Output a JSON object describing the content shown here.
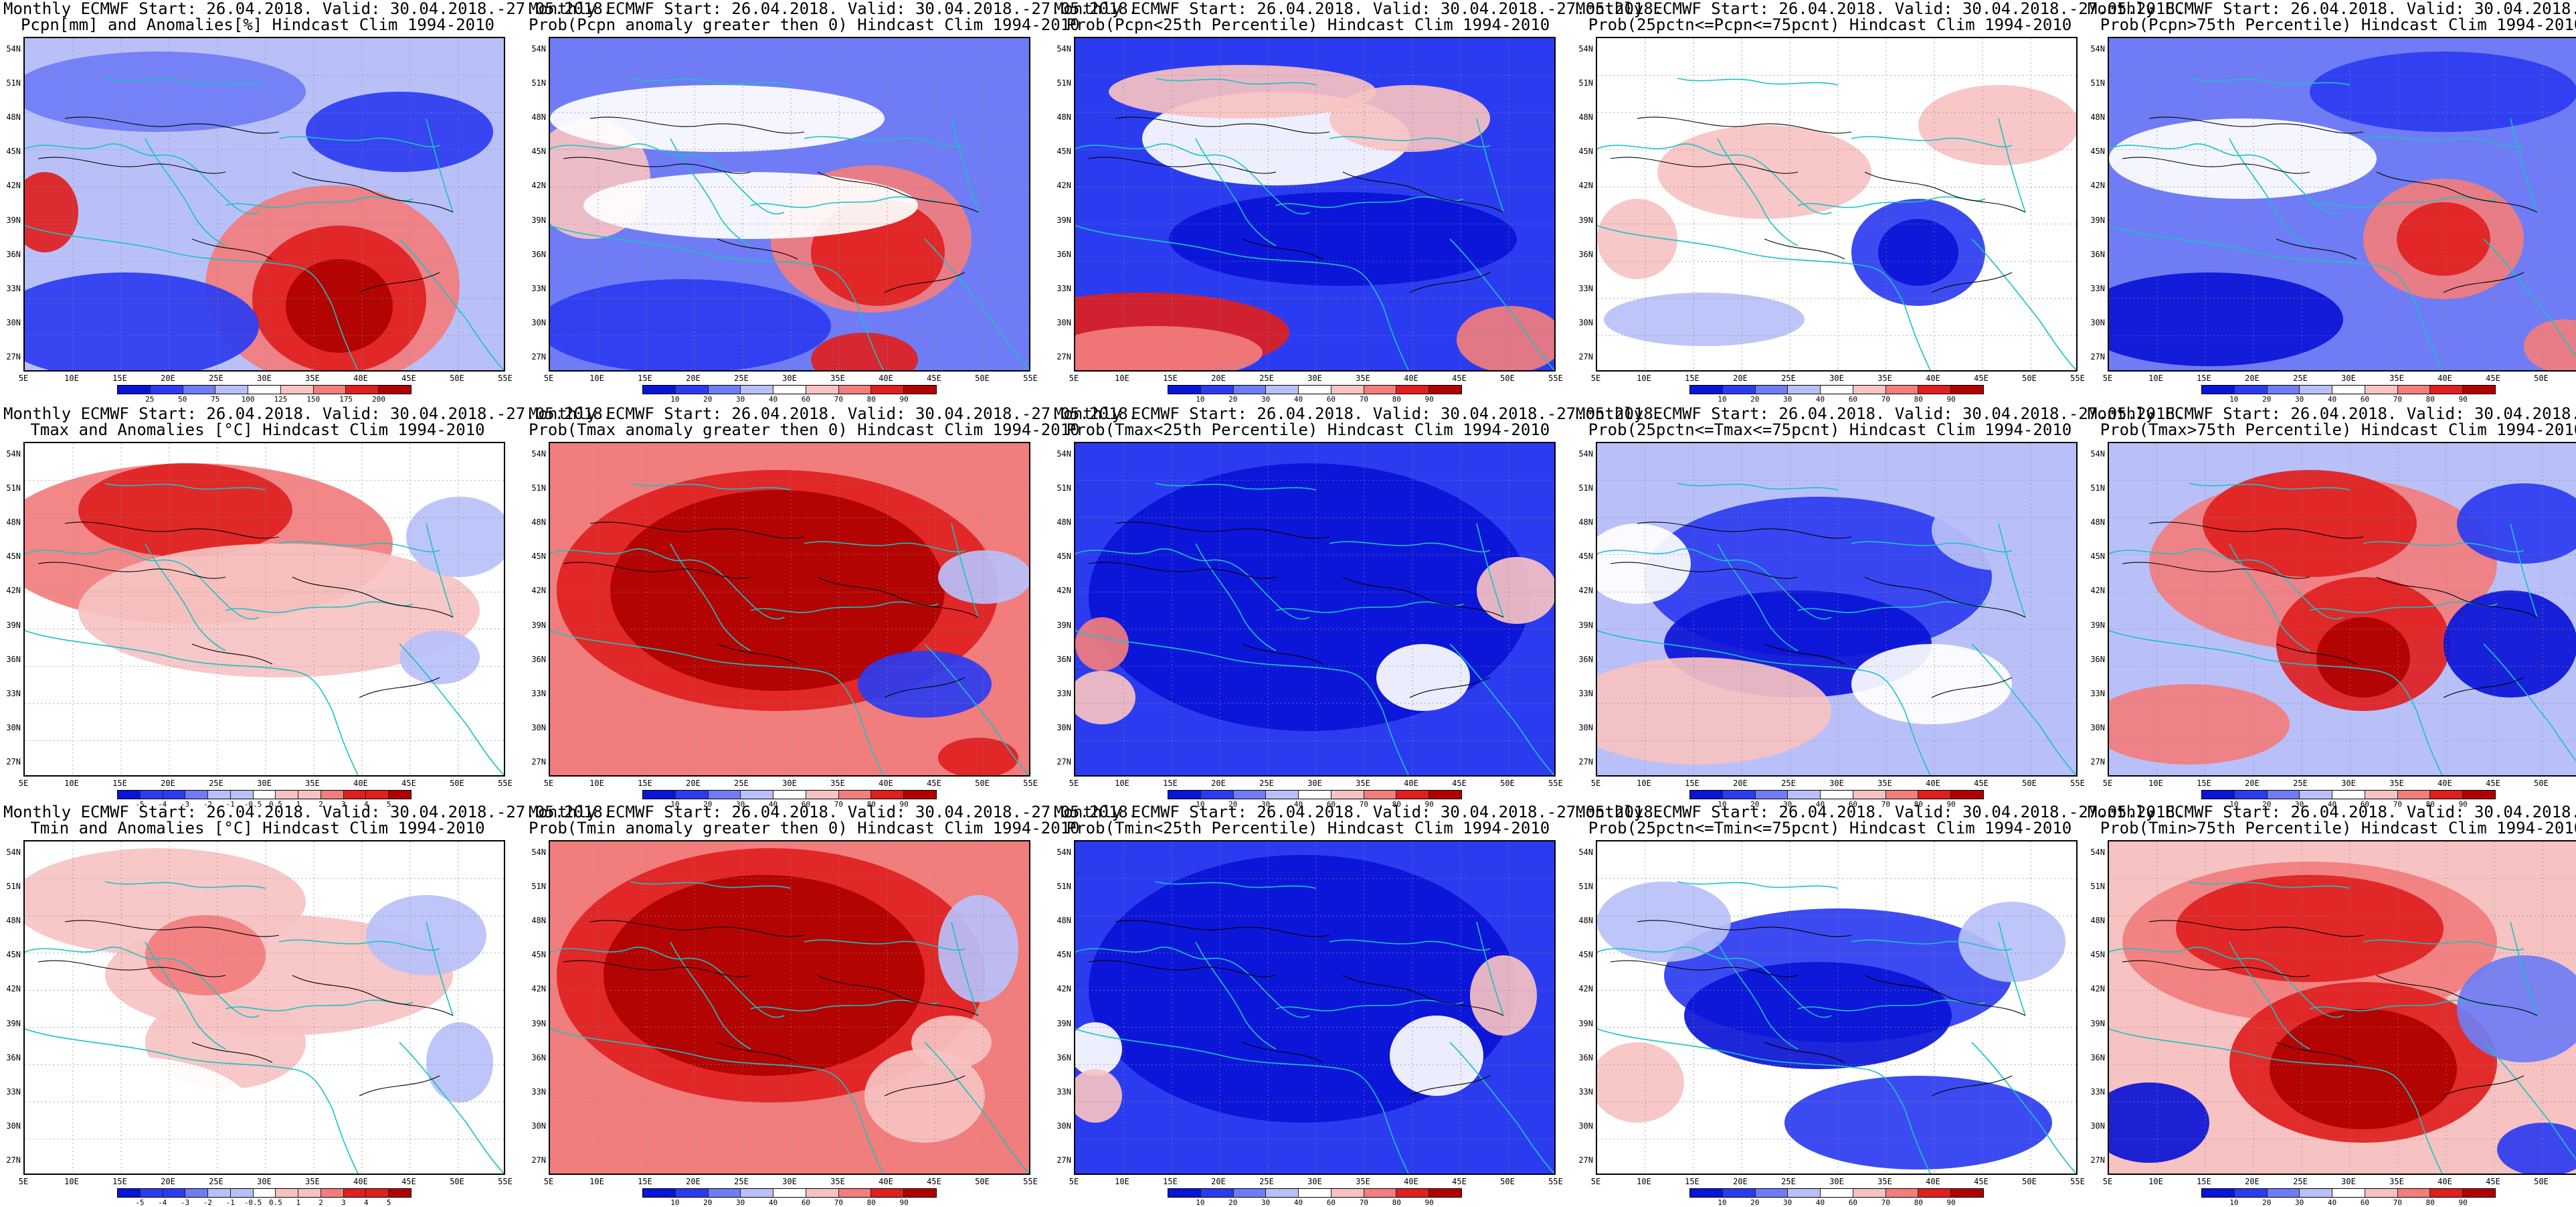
{
  "figure": {
    "header_line": "Monthly ECMWF Start: 26.04.2018. Valid: 30.04.2018.-27.05.2018.",
    "lat_labels": [
      "54N",
      "51N",
      "48N",
      "45N",
      "42N",
      "39N",
      "36N",
      "33N",
      "30N",
      "27N"
    ],
    "lon_labels": [
      "5E",
      "10E",
      "15E",
      "20E",
      "25E",
      "30E",
      "35E",
      "40E",
      "45E",
      "50E",
      "55E"
    ],
    "colors": {
      "deep_blue": "#0a14d6",
      "blue": "#2b3cf0",
      "mid_blue": "#6f7cf5",
      "light_blue": "#b9c0f8",
      "white": "#ffffff",
      "light_red": "#f7c2c2",
      "mid_red": "#f27d7d",
      "red": "#e01f1f",
      "dark_red": "#b00000",
      "coast": "#17c4c4",
      "contour": "#000000"
    },
    "scales": {
      "anom_pcpn": [
        "25",
        "50",
        "75",
        "100",
        "125",
        "150",
        "175",
        "200"
      ],
      "anom_temp": [
        "-5",
        "-4",
        "-3",
        "-2",
        "-1",
        "-0.5",
        "0.5",
        "1",
        "2",
        "3",
        "4",
        "5"
      ],
      "prob": [
        "10",
        "20",
        "30",
        "40",
        "60",
        "70",
        "80",
        "90"
      ]
    },
    "panels": [
      {
        "title": "Pcpn[mm] and Anomalies[%] Hindcast Clim 1994-2010",
        "scale": "anom_pcpn",
        "pattern": "pcpn_anom"
      },
      {
        "title": "Prob(Pcpn anomaly greater then 0) Hindcast Clim 1994-2010",
        "scale": "prob",
        "pattern": "pcpn_prob_pos"
      },
      {
        "title": "Prob(Pcpn<25th Percentile) Hindcast Clim 1994-2010",
        "scale": "prob",
        "pattern": "pcpn_low"
      },
      {
        "title": "Prob(25pctn<=Pcpn<=75pcnt) Hindcast Clim 1994-2010",
        "scale": "prob",
        "pattern": "pcpn_mid"
      },
      {
        "title": "Prob(Pcpn>75th Percentile) Hindcast Clim 1994-2010",
        "scale": "prob",
        "pattern": "pcpn_high"
      },
      {
        "title": "Tmax and Anomalies [°C] Hindcast Clim 1994-2010",
        "scale": "anom_temp",
        "pattern": "tmax_anom"
      },
      {
        "title": "Prob(Tmax anomaly greater then 0) Hindcast Clim 1994-2010",
        "scale": "prob",
        "pattern": "tmax_prob_pos"
      },
      {
        "title": "Prob(Tmax<25th Percentile) Hindcast Clim 1994-2010",
        "scale": "prob",
        "pattern": "tmax_low"
      },
      {
        "title": "Prob(25pctn<=Tmax<=75pcnt) Hindcast Clim 1994-2010",
        "scale": "prob",
        "pattern": "tmax_mid"
      },
      {
        "title": "Prob(Tmax>75th Percentile) Hindcast Clim 1994-2010",
        "scale": "prob",
        "pattern": "tmax_high"
      },
      {
        "title": "Tmin and Anomalies [°C] Hindcast Clim 1994-2010",
        "scale": "anom_temp",
        "pattern": "tmin_anom"
      },
      {
        "title": "Prob(Tmin anomaly greater then 0) Hindcast Clim 1994-2010",
        "scale": "prob",
        "pattern": "tmin_prob_pos"
      },
      {
        "title": "Prob(Tmin<25th Percentile) Hindcast Clim 1994-2010",
        "scale": "prob",
        "pattern": "tmin_low"
      },
      {
        "title": "Prob(25pctn<=Tmin<=75pcnt) Hindcast Clim 1994-2010",
        "scale": "prob",
        "pattern": "tmin_mid"
      },
      {
        "title": "Prob(Tmin>75th Percentile) Hindcast Clim 1994-2010",
        "scale": "prob",
        "pattern": "tmin_high"
      }
    ]
  }
}
